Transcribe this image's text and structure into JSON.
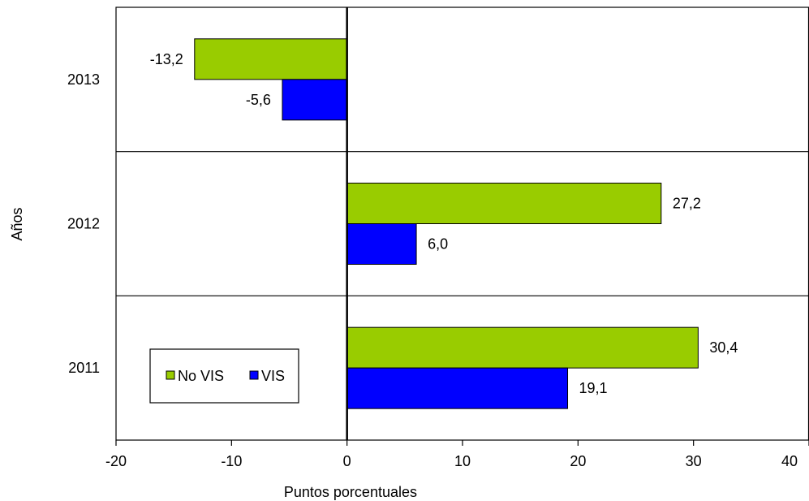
{
  "chart_data": {
    "type": "bar",
    "orientation": "horizontal",
    "categories": [
      "2013",
      "2012",
      "2011"
    ],
    "series": [
      {
        "name": "No VIS",
        "color": "#99CC00",
        "values": [
          -13.2,
          27.2,
          30.4
        ],
        "labels": [
          "-13,2",
          "27,2",
          "30,4"
        ]
      },
      {
        "name": "VIS",
        "color": "#0000FF",
        "values": [
          -5.6,
          6.0,
          19.1
        ],
        "labels": [
          "-5,6",
          "6,0",
          "19,1"
        ]
      }
    ],
    "xlabel": "Puntos porcentuales",
    "ylabel": "Años",
    "xlim": [
      -20,
      40
    ],
    "xticks": [
      -20,
      -10,
      0,
      10,
      20,
      30,
      40
    ],
    "xtick_labels": [
      "-20",
      "-10",
      "0",
      "10",
      "20",
      "30",
      "40"
    ],
    "grid": "horizontal separators between categories",
    "legend": {
      "position": "bottom-left"
    }
  }
}
